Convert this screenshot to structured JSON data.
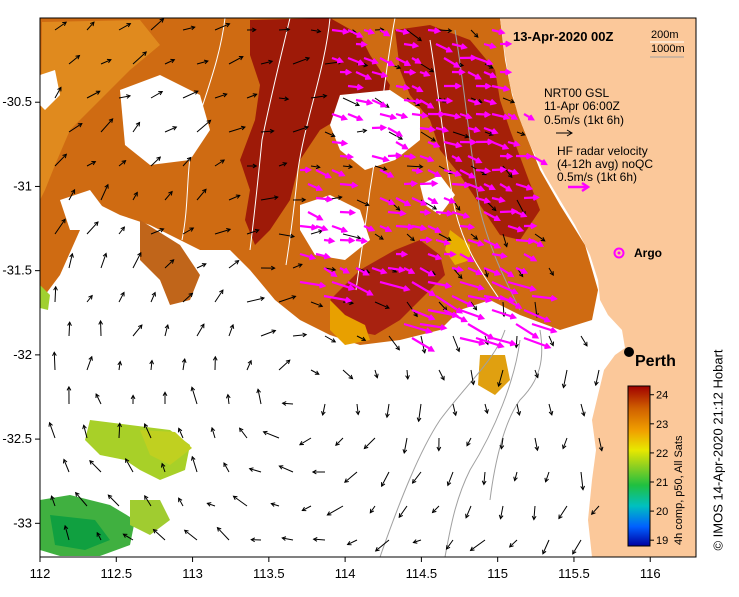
{
  "header": {
    "date": "13-Apr-2020 00Z",
    "iso_200": "200m",
    "iso_1000": "1000m"
  },
  "legend": {
    "model_title": "NRT00 GSL",
    "model_time": "11-Apr 06:00Z",
    "model_scale": "0.5m/s (1kt 6h)",
    "hf_title": "HF radar velocity",
    "hf_sub": "(4-12h avg) noQC",
    "hf_scale": "0.5m/s (1kt 6h)",
    "argo_label": "Argo",
    "model_arrow_color": "#000000",
    "hf_arrow_color": "#ff00ff"
  },
  "places": {
    "perth": "Perth"
  },
  "colorbar": {
    "title": "4h comp, p50, All Sats",
    "ticks": [
      "24",
      "23",
      "22",
      "21",
      "20",
      "19"
    ],
    "colors": [
      "#0000a0",
      "#0060ff",
      "#00c0c0",
      "#20c040",
      "#90d020",
      "#e8e800",
      "#f0a000",
      "#d06000",
      "#a00000"
    ]
  },
  "axes": {
    "x_ticks": [
      "112",
      "112.5",
      "113",
      "113.5",
      "114",
      "114.5",
      "115",
      "115.5",
      "116"
    ],
    "y_ticks": [
      "-30.5",
      "-31",
      "-31.5",
      "-32",
      "-32.5",
      "-33"
    ],
    "xlim": [
      112,
      116.3
    ],
    "ylim": [
      -33.2,
      -30.0
    ]
  },
  "colors": {
    "land": "#fbc89a",
    "ocean": "#ffffff"
  },
  "credit": "© IMOS 14-Apr-2020 21:12 Hobart"
}
